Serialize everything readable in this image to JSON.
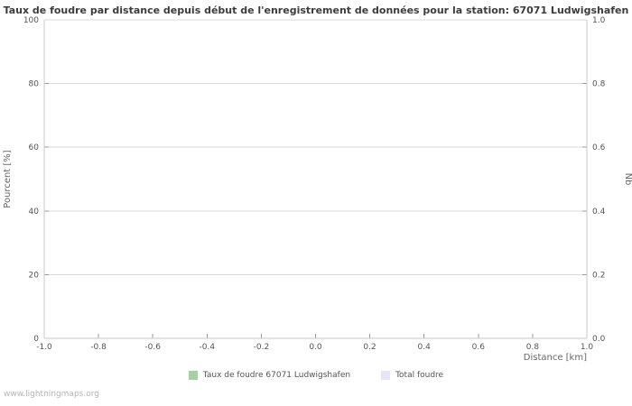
{
  "watermark": "www.lightningmaps.org",
  "chart_data": {
    "type": "line",
    "title": "Taux de foudre par distance depuis début de l'enregistrement de données pour la station: 67071 Ludwigshafen",
    "xlabel": "Distance  [km]",
    "ylabel_left": "Pourcent  [%]",
    "ylabel_right": "Nb",
    "xlim": [
      -1.0,
      1.0
    ],
    "ylim_left": [
      0,
      100
    ],
    "ylim_right": [
      0.0,
      1.0
    ],
    "x_tick_labels": [
      "-1.0",
      "-0.8",
      "-0.6",
      "-0.4",
      "-0.2",
      "0.0",
      "0.2",
      "0.4",
      "0.6",
      "0.8",
      "1.0"
    ],
    "y_left_tick_labels": [
      "0",
      "20",
      "40",
      "60",
      "80",
      "100"
    ],
    "y_right_tick_labels": [
      "0.0",
      "0.2",
      "0.4",
      "0.6",
      "0.8",
      "1.0"
    ],
    "grid": true,
    "legend_position": "bottom",
    "series": [
      {
        "name": "Taux de foudre 67071 Ludwigshafen",
        "color": "#a5d2a0",
        "values": []
      },
      {
        "name": "Total foudre",
        "color": "#e6e6f7",
        "values": []
      }
    ],
    "colors": {
      "gridline": "#d8d8d8",
      "border": "#c8c8c8",
      "tick": "#999999",
      "tick_label": "#555555",
      "axis_label": "#666666"
    }
  }
}
